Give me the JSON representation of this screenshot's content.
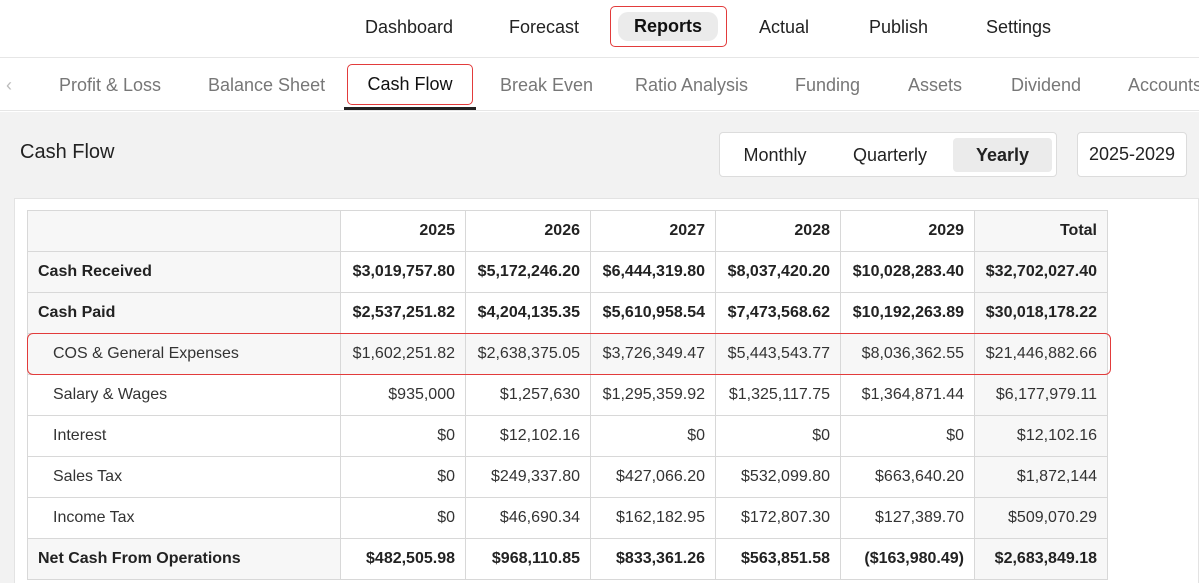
{
  "topnav": {
    "items": [
      "Dashboard",
      "Forecast",
      "Reports",
      "Actual",
      "Publish",
      "Settings"
    ],
    "active": "Reports"
  },
  "subnav": {
    "chevron_icon": "chevron-left-icon",
    "tabs": [
      "Profit & Loss",
      "Balance Sheet",
      "Cash Flow",
      "Break Even",
      "Ratio Analysis",
      "Funding",
      "Assets",
      "Dividend",
      "Accounts"
    ],
    "active": "Cash Flow"
  },
  "page": {
    "title": "Cash Flow",
    "periods": [
      "Monthly",
      "Quarterly",
      "Yearly"
    ],
    "selected_period": "Yearly",
    "range": "2025-2029"
  },
  "table": {
    "columns": [
      "",
      "2025",
      "2026",
      "2027",
      "2028",
      "2029",
      "Total"
    ],
    "rows": [
      {
        "label": "Cash Received",
        "bold": true,
        "values": [
          "$3,019,757.80",
          "$5,172,246.20",
          "$6,444,319.80",
          "$8,037,420.20",
          "$10,028,283.40",
          "$32,702,027.40"
        ]
      },
      {
        "label": "Cash Paid",
        "bold": true,
        "values": [
          "$2,537,251.82",
          "$4,204,135.35",
          "$5,610,958.54",
          "$7,473,568.62",
          "$10,192,263.89",
          "$30,018,178.22"
        ]
      },
      {
        "label": "COS & General Expenses",
        "bold": false,
        "values": [
          "$1,602,251.82",
          "$2,638,375.05",
          "$3,726,349.47",
          "$5,443,543.77",
          "$8,036,362.55",
          "$21,446,882.66"
        ]
      },
      {
        "label": "Salary & Wages",
        "bold": false,
        "values": [
          "$935,000",
          "$1,257,630",
          "$1,295,359.92",
          "$1,325,117.75",
          "$1,364,871.44",
          "$6,177,979.11"
        ]
      },
      {
        "label": "Interest",
        "bold": false,
        "values": [
          "$0",
          "$12,102.16",
          "$0",
          "$0",
          "$0",
          "$12,102.16"
        ]
      },
      {
        "label": "Sales Tax",
        "bold": false,
        "values": [
          "$0",
          "$249,337.80",
          "$427,066.20",
          "$532,099.80",
          "$663,640.20",
          "$1,872,144"
        ]
      },
      {
        "label": "Income Tax",
        "bold": false,
        "values": [
          "$0",
          "$46,690.34",
          "$162,182.95",
          "$172,807.30",
          "$127,389.70",
          "$509,070.29"
        ]
      },
      {
        "label": "Net Cash From Operations",
        "bold": true,
        "values": [
          "$482,505.98",
          "$968,110.85",
          "$833,361.26",
          "$563,851.58",
          "($163,980.49)",
          "$2,683,849.18"
        ]
      }
    ],
    "highlight_color": "#e23b3b",
    "negative_color": "#e23b3b"
  }
}
